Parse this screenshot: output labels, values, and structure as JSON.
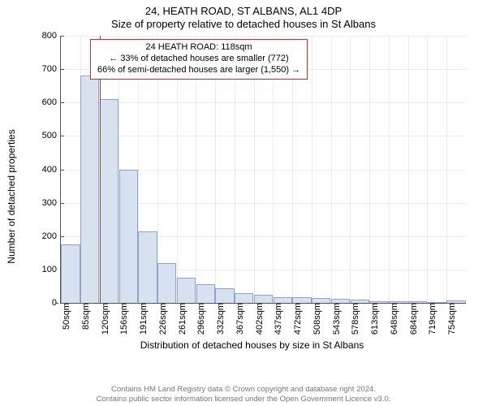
{
  "header": {
    "title": "24, HEATH ROAD, ST ALBANS, AL1 4DP",
    "subtitle": "Size of property relative to detached houses in St Albans"
  },
  "axes": {
    "ylabel": "Number of detached properties",
    "xlabel": "Distribution of detached houses by size in St Albans",
    "label_fontsize": 12
  },
  "chart": {
    "type": "histogram",
    "ylim": [
      0,
      800
    ],
    "ytick_step": 100,
    "x_categories": [
      "50sqm",
      "85sqm",
      "120sqm",
      "156sqm",
      "191sqm",
      "226sqm",
      "261sqm",
      "296sqm",
      "332sqm",
      "367sqm",
      "402sqm",
      "437sqm",
      "472sqm",
      "508sqm",
      "543sqm",
      "578sqm",
      "613sqm",
      "648sqm",
      "684sqm",
      "719sqm",
      "754sqm"
    ],
    "values": [
      175,
      680,
      610,
      400,
      215,
      120,
      75,
      55,
      45,
      30,
      25,
      18,
      18,
      15,
      12,
      10,
      4,
      6,
      4,
      3,
      8
    ],
    "bar_fill": "#d8e1f0",
    "bar_border": "#8fa4c8",
    "grid_color": "#e9edf3",
    "background_color": "#ffffff",
    "marker": {
      "color": "#d42a2a",
      "position_category_index": 2,
      "position_ratio_within": 0.0
    }
  },
  "legend": {
    "line1": "24 HEATH ROAD: 118sqm",
    "line2": "← 33% of detached houses are smaller (772)",
    "line3": "66% of semi-detached houses are larger (1,550) →",
    "border_color": "#d42a2a",
    "fontsize": 11
  },
  "footer": {
    "line1": "Contains HM Land Registry data © Crown copyright and database right 2024.",
    "line2": "Contains public sector information licensed under the Open Government Licence v3.0."
  }
}
